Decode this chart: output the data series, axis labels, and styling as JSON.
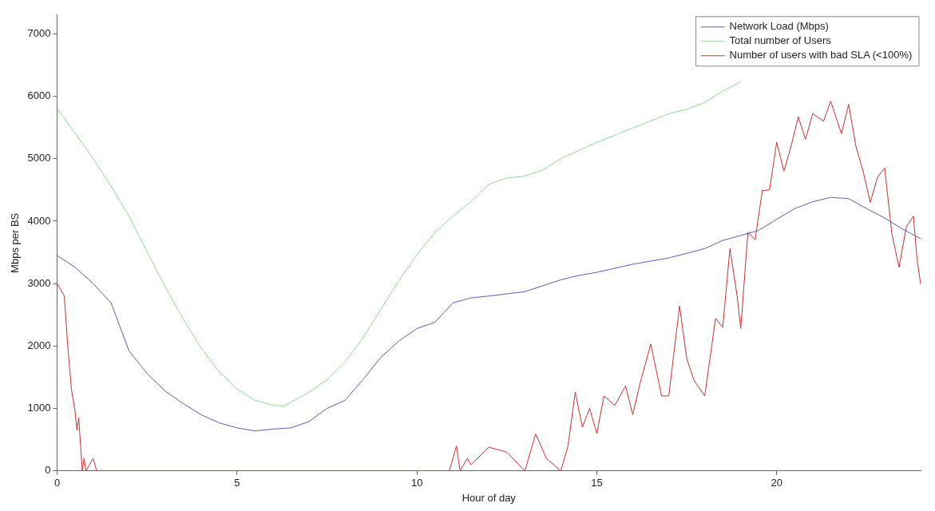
{
  "chart_data": {
    "type": "line",
    "xlabel": "Hour of day",
    "ylabel": "Mbps per BS",
    "xlim": [
      0,
      24
    ],
    "xticks": [
      0,
      5,
      10,
      15,
      20
    ],
    "ylim": [
      0,
      7300
    ],
    "yticks": [
      0,
      1000,
      2000,
      3000,
      4000,
      5000,
      6000,
      7000
    ],
    "grid": false,
    "legend": "top right",
    "marker": "none",
    "line_style": "solid",
    "series": [
      {
        "name": "Network Load (Mbps)",
        "color": "#5c5cb8",
        "x": [
          0,
          0.5,
          1,
          1.5,
          2,
          2.5,
          3,
          3.5,
          4,
          4.5,
          5,
          5.5,
          6,
          6.5,
          7,
          7.5,
          8,
          8.5,
          9,
          9.5,
          10,
          10.5,
          11,
          11.5,
          12,
          13,
          14,
          14.5,
          15,
          16,
          17,
          18,
          18.5,
          19,
          19.5,
          20,
          20.5,
          21,
          21.5,
          22,
          22.5,
          23,
          23.5,
          24
        ],
        "values": [
          3450,
          3260,
          3000,
          2690,
          1920,
          1560,
          1280,
          1080,
          900,
          770,
          690,
          640,
          670,
          690,
          790,
          1000,
          1130,
          1460,
          1820,
          2080,
          2280,
          2380,
          2690,
          2770,
          2800,
          2870,
          3060,
          3130,
          3180,
          3310,
          3410,
          3560,
          3690,
          3770,
          3850,
          4030,
          4200,
          4310,
          4380,
          4360,
          4200,
          4050,
          3870,
          3720
        ]
      },
      {
        "name": "Total number of Users",
        "color": "#8fdc8f",
        "x": [
          0,
          0.5,
          1,
          1.5,
          2,
          2.5,
          3,
          3.5,
          4,
          4.5,
          5,
          5.5,
          6,
          6.3,
          6.5,
          7,
          7.5,
          8,
          8.5,
          9,
          9.5,
          10,
          10.5,
          11,
          11.5,
          12,
          12.5,
          13,
          13.5,
          14,
          15,
          16,
          17,
          17.5,
          18,
          18.5,
          19
        ],
        "values": [
          5800,
          5410,
          5000,
          4560,
          4080,
          3510,
          2950,
          2440,
          1970,
          1590,
          1310,
          1130,
          1050,
          1040,
          1100,
          1260,
          1460,
          1740,
          2130,
          2590,
          3050,
          3460,
          3820,
          4080,
          4310,
          4590,
          4690,
          4720,
          4820,
          5000,
          5260,
          5490,
          5720,
          5790,
          5900,
          6080,
          6230
        ]
      },
      {
        "name": "Number of users with bad SLA (<100%)",
        "color": "#c83232",
        "x": [
          0,
          0.1,
          0.2,
          0.3,
          0.4,
          0.5,
          0.55,
          0.6,
          0.7,
          0.75,
          0.8,
          1.0,
          1.1,
          10.9,
          11.1,
          11.2,
          11.4,
          11.5,
          12,
          12.5,
          13,
          13.3,
          13.6,
          14,
          14.2,
          14.4,
          14.6,
          14.8,
          15,
          15.2,
          15.5,
          15.8,
          16,
          16.2,
          16.5,
          16.8,
          17,
          17.3,
          17.5,
          17.7,
          18,
          18.3,
          18.5,
          18.7,
          18.9,
          19,
          19.2,
          19.4,
          19.6,
          19.8,
          20,
          20.2,
          20.4,
          20.6,
          20.8,
          21,
          21.3,
          21.5,
          21.8,
          22,
          22.2,
          22.4,
          22.6,
          22.8,
          23,
          23.2,
          23.4,
          23.6,
          23.8,
          23.9,
          24
        ],
        "values": [
          3000,
          2900,
          2800,
          1970,
          1300,
          950,
          650,
          850,
          0,
          200,
          0,
          200,
          0,
          0,
          400,
          0,
          200,
          100,
          380,
          300,
          0,
          590,
          200,
          0,
          400,
          1260,
          700,
          1000,
          600,
          1200,
          1050,
          1360,
          900,
          1400,
          2030,
          1200,
          1200,
          2640,
          1800,
          1450,
          1200,
          2440,
          2300,
          3560,
          2800,
          2280,
          3820,
          3700,
          4490,
          4500,
          5260,
          4800,
          5200,
          5670,
          5310,
          5720,
          5600,
          5920,
          5400,
          5870,
          5200,
          4800,
          4300,
          4700,
          4850,
          3800,
          3260,
          3900,
          4080,
          3400,
          2990
        ]
      }
    ]
  }
}
